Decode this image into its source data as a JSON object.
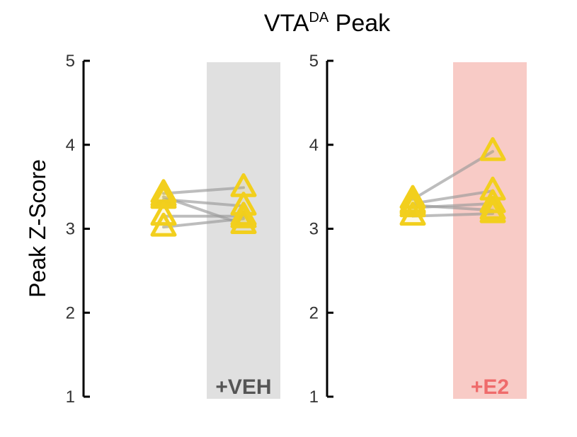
{
  "chart_data": {
    "type": "scatter",
    "title": "VTA",
    "title_superscript": "DA",
    "title_suffix": " Peak",
    "ylabel": "Peak Z-Score",
    "ylim": [
      1,
      5
    ],
    "yticks": [
      1,
      2,
      3,
      4,
      5
    ],
    "grid": false,
    "marker": "open-triangle",
    "marker_color": "#F2CF1D",
    "connector_color": "#9a9a9a",
    "panels": [
      {
        "band_label": "+VEH",
        "band_color": "#e0e0e0",
        "band_label_color": "#555555",
        "pairs": [
          {
            "before": 3.42,
            "after": 3.49
          },
          {
            "before": 3.38,
            "after": 3.05
          },
          {
            "before": 3.35,
            "after": 3.27
          },
          {
            "before": 3.15,
            "after": 3.15
          },
          {
            "before": 3.02,
            "after": 3.12
          }
        ]
      },
      {
        "band_label": "+E2",
        "band_color": "#f8cbc6",
        "band_label_color": "#ef6b6b",
        "pairs": [
          {
            "before": 3.35,
            "after": 3.92
          },
          {
            "before": 3.3,
            "after": 3.45
          },
          {
            "before": 3.28,
            "after": 3.22
          },
          {
            "before": 3.25,
            "after": 3.3
          },
          {
            "before": 3.15,
            "after": 3.18
          }
        ]
      }
    ]
  }
}
